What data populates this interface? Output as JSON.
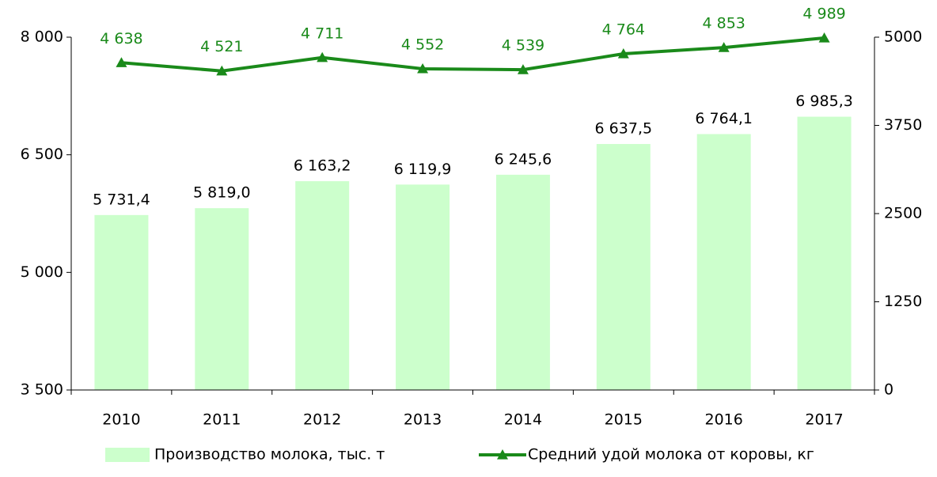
{
  "chart_data": {
    "type": "bar",
    "categories": [
      "2010",
      "2011",
      "2012",
      "2013",
      "2014",
      "2015",
      "2016",
      "2017"
    ],
    "series": [
      {
        "name": "Производство молока, тыс. т",
        "type": "bar",
        "color": "#ccffcc",
        "values": [
          5731.4,
          5819.0,
          6163.2,
          6119.9,
          6245.6,
          6637.5,
          6764.1,
          6985.3
        ],
        "value_labels": [
          "5 731,4",
          "5 819,0",
          "6 163,2",
          "6 119,9",
          "6 245,6",
          "6 637,5",
          "6 764,1",
          "6 985,3"
        ]
      },
      {
        "name": "Средний удой молока от коровы, кг",
        "type": "line",
        "axis": "y2",
        "color": "#1a8a1a",
        "values": [
          4638,
          4521,
          4711,
          4552,
          4539,
          4764,
          4853,
          4989
        ],
        "value_labels": [
          "4 638",
          "4 521",
          "4 711",
          "4 552",
          "4 539",
          "4 764",
          "4 853",
          "4 989"
        ]
      }
    ],
    "ylim": [
      3500,
      8000
    ],
    "yticks": [
      {
        "value": 3500,
        "label": "3 500"
      },
      {
        "value": 5000,
        "label": "5 000"
      },
      {
        "value": 6500,
        "label": "6 500"
      },
      {
        "value": 8000,
        "label": "8 000"
      }
    ],
    "y2lim": [
      0,
      5000
    ],
    "y2ticks": [
      0,
      1250,
      2500,
      3750,
      5000
    ],
    "legend": "bottom"
  }
}
